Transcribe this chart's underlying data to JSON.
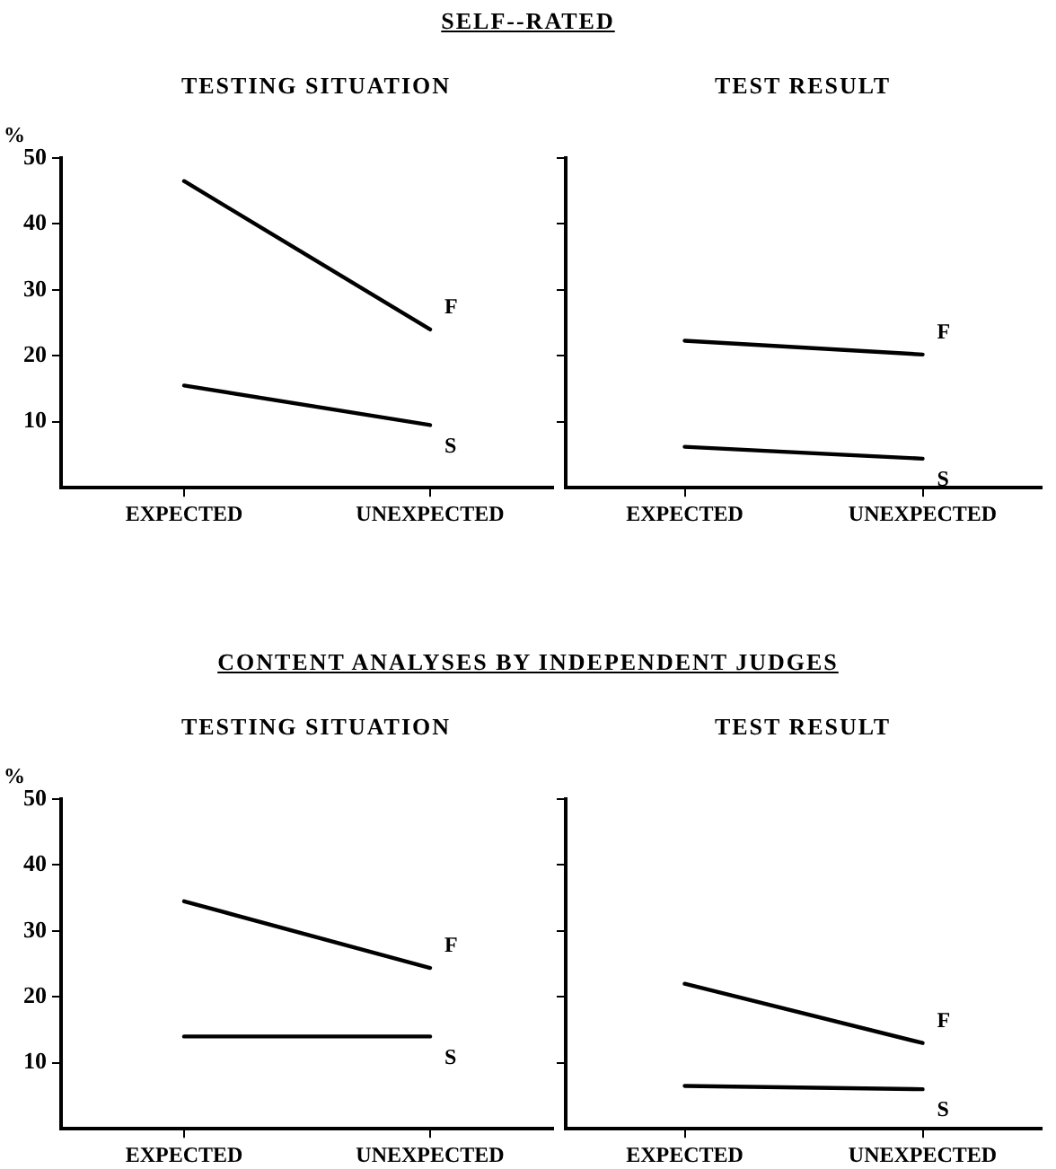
{
  "chart_data": [
    {
      "type": "line",
      "title": "SELF--RATED",
      "subtitle": "TESTING SITUATION",
      "ylabel": "%",
      "categories": [
        "EXPECTED",
        "UNEXPECTED"
      ],
      "series": [
        {
          "name": "F",
          "color": "#000000",
          "values": [
            46.5,
            24
          ]
        },
        {
          "name": "S",
          "color": "#000000",
          "values": [
            15.5,
            9.5
          ]
        }
      ],
      "ylim": [
        0,
        50
      ],
      "yticks": [
        10,
        20,
        30,
        40,
        50
      ],
      "grid": false,
      "legend": false,
      "marker": "none",
      "line_style": "solid"
    },
    {
      "type": "line",
      "subtitle": "TEST RESULT",
      "categories": [
        "EXPECTED",
        "UNEXPECTED"
      ],
      "series": [
        {
          "name": "F",
          "color": "#000000",
          "values": [
            22.3,
            20.2
          ]
        },
        {
          "name": "S",
          "color": "#000000",
          "values": [
            6.2,
            4.4
          ]
        }
      ],
      "ylim": [
        0,
        50
      ],
      "yticks": [
        10,
        20,
        30,
        40,
        50
      ],
      "tick_labels": "x",
      "grid": false,
      "legend": false,
      "marker": "none",
      "line_style": "solid"
    },
    {
      "type": "line",
      "title": "CONTENT ANALYSES BY INDEPENDENT JUDGES",
      "subtitle": "TESTING SITUATION",
      "ylabel": "%",
      "categories": [
        "EXPECTED",
        "UNEXPECTED"
      ],
      "series": [
        {
          "name": "F",
          "color": "#000000",
          "values": [
            34.5,
            24.4
          ]
        },
        {
          "name": "S",
          "color": "#000000",
          "values": [
            14,
            14
          ]
        }
      ],
      "ylim": [
        0,
        50
      ],
      "yticks": [
        10,
        20,
        30,
        40,
        50
      ],
      "grid": false,
      "legend": false,
      "marker": "none",
      "line_style": "solid"
    },
    {
      "type": "line",
      "subtitle": "TEST RESULT",
      "categories": [
        "EXPECTED",
        "UNEXPECTED"
      ],
      "series": [
        {
          "name": "F",
          "color": "#000000",
          "values": [
            22,
            13
          ]
        },
        {
          "name": "S",
          "color": "#000000",
          "values": [
            6.5,
            6
          ]
        }
      ],
      "ylim": [
        0,
        50
      ],
      "yticks": [
        10,
        20,
        30,
        40,
        50
      ],
      "tick_labels": "x",
      "grid": false,
      "legend": false,
      "marker": "none",
      "line_style": "solid"
    }
  ]
}
